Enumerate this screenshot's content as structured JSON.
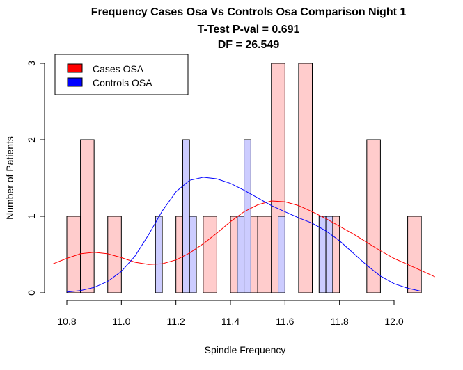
{
  "chart_data": {
    "type": "histogram",
    "title_lines": [
      "Frequency Cases Osa Vs Controls Osa Comparison Night 1",
      "T-Test P-val = 0.691",
      "DF = 26.549"
    ],
    "xlabel": "Spindle Frequency",
    "ylabel": "Number of Patients",
    "xlim": [
      10.75,
      12.15
    ],
    "ylim": [
      0,
      3
    ],
    "x_ticks": [
      "10.8",
      "11.0",
      "11.2",
      "11.4",
      "11.6",
      "11.8",
      "12.0"
    ],
    "y_ticks": [
      "0",
      "1",
      "2",
      "3"
    ],
    "legend_position": "top-left",
    "series": [
      {
        "name": "Cases OSA",
        "color": "#ff0000",
        "fill": "#ffcccc",
        "bin_width": 0.05,
        "bins": [
          {
            "x0": 10.8,
            "count": 1
          },
          {
            "x0": 10.85,
            "count": 2
          },
          {
            "x0": 10.95,
            "count": 1
          },
          {
            "x0": 11.2,
            "count": 1
          },
          {
            "x0": 11.3,
            "count": 1
          },
          {
            "x0": 11.4,
            "count": 1
          },
          {
            "x0": 11.45,
            "count": 1
          },
          {
            "x0": 11.5,
            "count": 1
          },
          {
            "x0": 11.55,
            "count": 3
          },
          {
            "x0": 11.65,
            "count": 3
          },
          {
            "x0": 11.75,
            "count": 1
          },
          {
            "x0": 11.9,
            "count": 2
          },
          {
            "x0": 12.05,
            "count": 1
          }
        ],
        "density": [
          [
            10.75,
            0.38
          ],
          [
            10.8,
            0.45
          ],
          [
            10.85,
            0.51
          ],
          [
            10.9,
            0.53
          ],
          [
            10.95,
            0.51
          ],
          [
            11.0,
            0.46
          ],
          [
            11.05,
            0.4
          ],
          [
            11.1,
            0.37
          ],
          [
            11.15,
            0.38
          ],
          [
            11.2,
            0.43
          ],
          [
            11.25,
            0.52
          ],
          [
            11.3,
            0.64
          ],
          [
            11.35,
            0.78
          ],
          [
            11.4,
            0.93
          ],
          [
            11.45,
            1.06
          ],
          [
            11.5,
            1.15
          ],
          [
            11.55,
            1.2
          ],
          [
            11.6,
            1.19
          ],
          [
            11.65,
            1.14
          ],
          [
            11.7,
            1.06
          ],
          [
            11.75,
            0.97
          ],
          [
            11.8,
            0.87
          ],
          [
            11.85,
            0.77
          ],
          [
            11.9,
            0.66
          ],
          [
            11.95,
            0.55
          ],
          [
            12.0,
            0.45
          ],
          [
            12.05,
            0.37
          ],
          [
            12.1,
            0.29
          ],
          [
            12.15,
            0.21
          ]
        ]
      },
      {
        "name": "Controls OSA",
        "color": "#0000ff",
        "fill": "#ccccff",
        "bin_width": 0.025,
        "bins": [
          {
            "x0": 11.125,
            "count": 1
          },
          {
            "x0": 11.225,
            "count": 2
          },
          {
            "x0": 11.25,
            "count": 1
          },
          {
            "x0": 11.425,
            "count": 1
          },
          {
            "x0": 11.45,
            "count": 2
          },
          {
            "x0": 11.575,
            "count": 1
          },
          {
            "x0": 11.725,
            "count": 1
          },
          {
            "x0": 11.75,
            "count": 1
          }
        ],
        "density": [
          [
            10.8,
            0.01
          ],
          [
            10.85,
            0.03
          ],
          [
            10.9,
            0.07
          ],
          [
            10.95,
            0.15
          ],
          [
            11.0,
            0.28
          ],
          [
            11.05,
            0.48
          ],
          [
            11.1,
            0.76
          ],
          [
            11.15,
            1.07
          ],
          [
            11.2,
            1.32
          ],
          [
            11.25,
            1.47
          ],
          [
            11.3,
            1.51
          ],
          [
            11.35,
            1.49
          ],
          [
            11.4,
            1.43
          ],
          [
            11.45,
            1.34
          ],
          [
            11.5,
            1.24
          ],
          [
            11.55,
            1.14
          ],
          [
            11.6,
            1.06
          ],
          [
            11.65,
            0.98
          ],
          [
            11.7,
            0.91
          ],
          [
            11.75,
            0.81
          ],
          [
            11.8,
            0.68
          ],
          [
            11.85,
            0.52
          ],
          [
            11.9,
            0.36
          ],
          [
            11.95,
            0.22
          ],
          [
            12.0,
            0.12
          ],
          [
            12.05,
            0.06
          ],
          [
            12.1,
            0.02
          ]
        ]
      }
    ]
  }
}
